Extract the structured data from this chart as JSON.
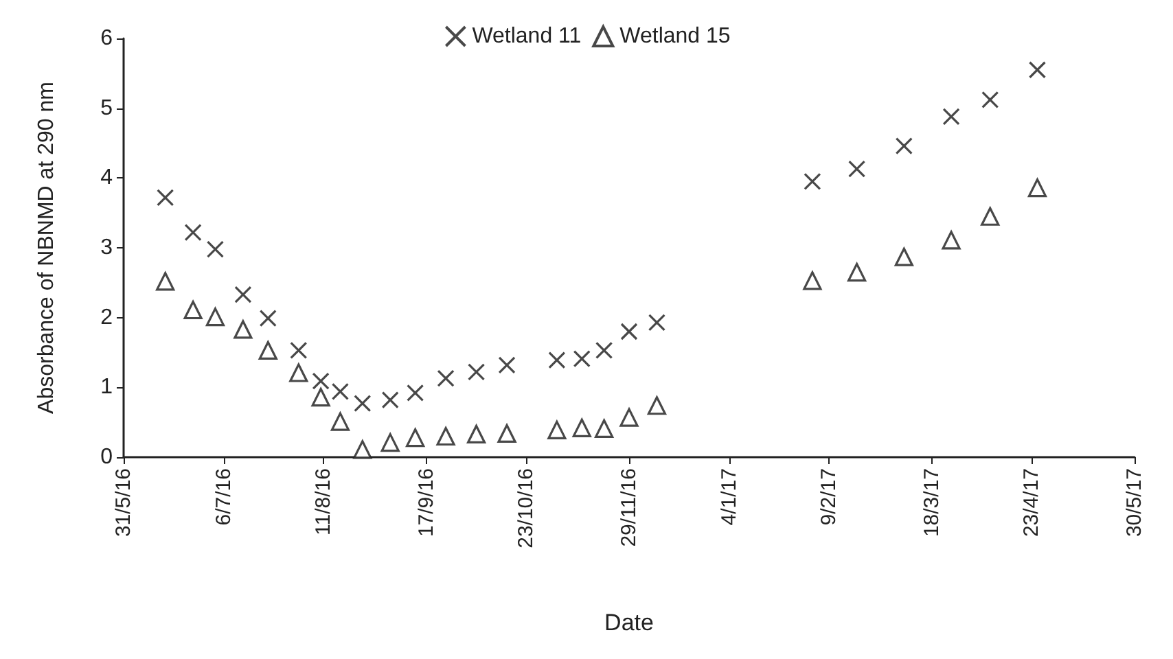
{
  "chart_data": {
    "type": "scatter",
    "xlabel": "Date",
    "ylabel": "Absorbance of NBNMD at 290 nm",
    "x": [
      "2016-06-15",
      "2016-06-25",
      "2016-07-03",
      "2016-07-13",
      "2016-07-22",
      "2016-08-02",
      "2016-08-10",
      "2016-08-17",
      "2016-08-25",
      "2016-09-04",
      "2016-09-13",
      "2016-09-24",
      "2016-10-05",
      "2016-10-16",
      "2016-11-03",
      "2016-11-12",
      "2016-11-20",
      "2016-11-29",
      "2016-12-09",
      "2017-02-03",
      "2017-02-19",
      "2017-03-08",
      "2017-03-25",
      "2017-04-08",
      "2017-04-25"
    ],
    "series": [
      {
        "name": "Wetland 11",
        "color": "#1a1a1a",
        "marker": "cross",
        "values": [
          3.72,
          3.22,
          2.98,
          2.33,
          1.99,
          1.53,
          1.09,
          0.94,
          0.77,
          0.82,
          0.92,
          1.13,
          1.22,
          1.32,
          1.39,
          1.41,
          1.53,
          1.8,
          1.93,
          3.95,
          4.13,
          4.46,
          4.88,
          5.12,
          5.55
        ]
      },
      {
        "name": "Wetland 15",
        "color": "#1a1a1a",
        "marker": "triangle",
        "values": [
          2.52,
          2.11,
          2.01,
          1.83,
          1.53,
          1.21,
          0.86,
          0.51,
          0.11,
          0.21,
          0.28,
          0.3,
          0.33,
          0.34,
          0.39,
          0.42,
          0.41,
          0.57,
          0.74,
          2.53,
          2.65,
          2.87,
          3.11,
          3.45,
          3.86
        ]
      }
    ],
    "xlim": [
      "2016-05-31",
      "2017-05-30"
    ],
    "xticks": [
      {
        "value": "2016-05-31",
        "label": "31/5/16"
      },
      {
        "value": "2016-07-06",
        "label": "6/7/16"
      },
      {
        "value": "2016-08-11",
        "label": "11/8/16"
      },
      {
        "value": "2016-09-17",
        "label": "17/9/16"
      },
      {
        "value": "2016-10-23",
        "label": "23/10/16"
      },
      {
        "value": "2016-11-29",
        "label": "29/11/16"
      },
      {
        "value": "2017-01-04",
        "label": "4/1/17"
      },
      {
        "value": "2017-02-09",
        "label": "9/2/17"
      },
      {
        "value": "2017-03-18",
        "label": "18/3/17"
      },
      {
        "value": "2017-04-23",
        "label": "23/4/17"
      },
      {
        "value": "2017-05-30",
        "label": "30/5/17"
      }
    ],
    "ylim": [
      0,
      6
    ],
    "yticks": [
      0,
      1,
      2,
      3,
      4,
      5,
      6
    ],
    "grid": false,
    "legend": "top"
  }
}
